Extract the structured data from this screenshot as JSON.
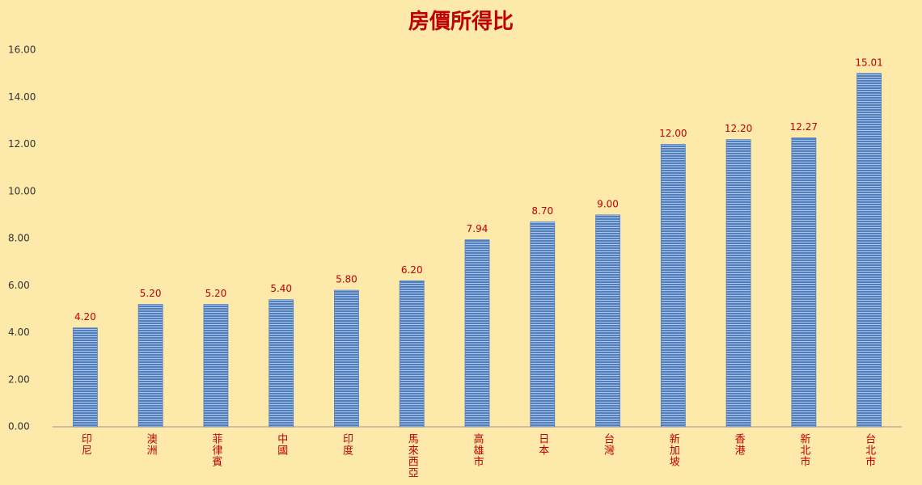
{
  "chart_data": {
    "type": "bar",
    "title": "房價所得比",
    "categories": [
      "印尼",
      "澳洲",
      "菲律賓",
      "中國",
      "印度",
      "馬來西亞",
      "高雄市",
      "日本",
      "台灣",
      "新加坡",
      "香港",
      "新北市",
      "台北市"
    ],
    "values": [
      4.2,
      5.2,
      5.2,
      5.4,
      5.8,
      6.2,
      7.94,
      8.7,
      9.0,
      12.0,
      12.2,
      12.27,
      15.01
    ],
    "value_labels": [
      "4.20",
      "5.20",
      "5.20",
      "5.40",
      "5.80",
      "6.20",
      "7.94",
      "8.70",
      "9.00",
      "12.00",
      "12.20",
      "12.27",
      "15.01"
    ],
    "color": "#4f7fc0",
    "ylim": [
      0,
      16
    ],
    "yticks": [
      {
        "value": 0,
        "label": "0.00"
      },
      {
        "value": 2,
        "label": "2.00"
      },
      {
        "value": 4,
        "label": "4.00"
      },
      {
        "value": 6,
        "label": "6.00"
      },
      {
        "value": 8,
        "label": "8.00"
      },
      {
        "value": 10,
        "label": "10.00"
      },
      {
        "value": 12,
        "label": "12.00"
      },
      {
        "value": 14,
        "label": "14.00"
      },
      {
        "value": 16,
        "label": "16.00"
      }
    ],
    "grid": false
  }
}
